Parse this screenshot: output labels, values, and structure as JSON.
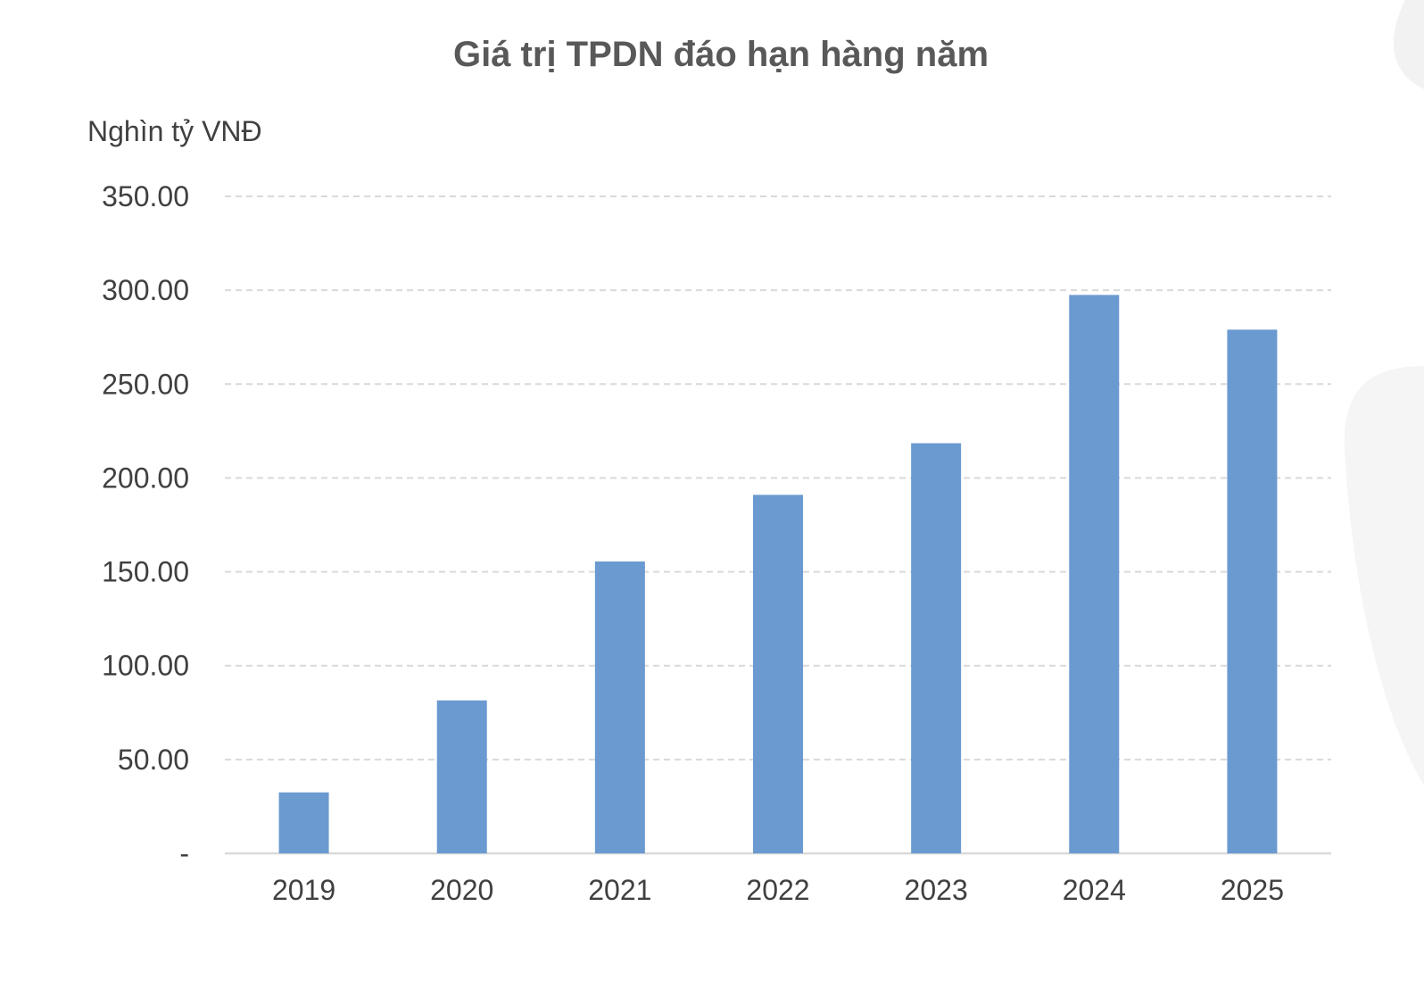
{
  "chart_data": {
    "type": "bar",
    "title": "Giá trị TPDN đáo hạn hàng năm",
    "ylabel": "Nghìn tỷ VNĐ",
    "xlabel": "",
    "categories": [
      "2019",
      "2020",
      "2021",
      "2022",
      "2023",
      "2024",
      "2025"
    ],
    "series": [
      {
        "name": "Giá trị TPDN đáo hạn",
        "values": [
          32.5,
          81.5,
          155.5,
          191,
          218.5,
          297.5,
          279
        ],
        "color": "#6a9ad0"
      }
    ],
    "ylim": [
      0,
      350
    ],
    "yticks": [
      0,
      50,
      100,
      150,
      200,
      250,
      300,
      350
    ],
    "ytick_labels": [
      "-",
      "50.00",
      "100.00",
      "150.00",
      "200.00",
      "250.00",
      "300.00",
      "350.00"
    ],
    "grid": true,
    "legend": "none"
  }
}
